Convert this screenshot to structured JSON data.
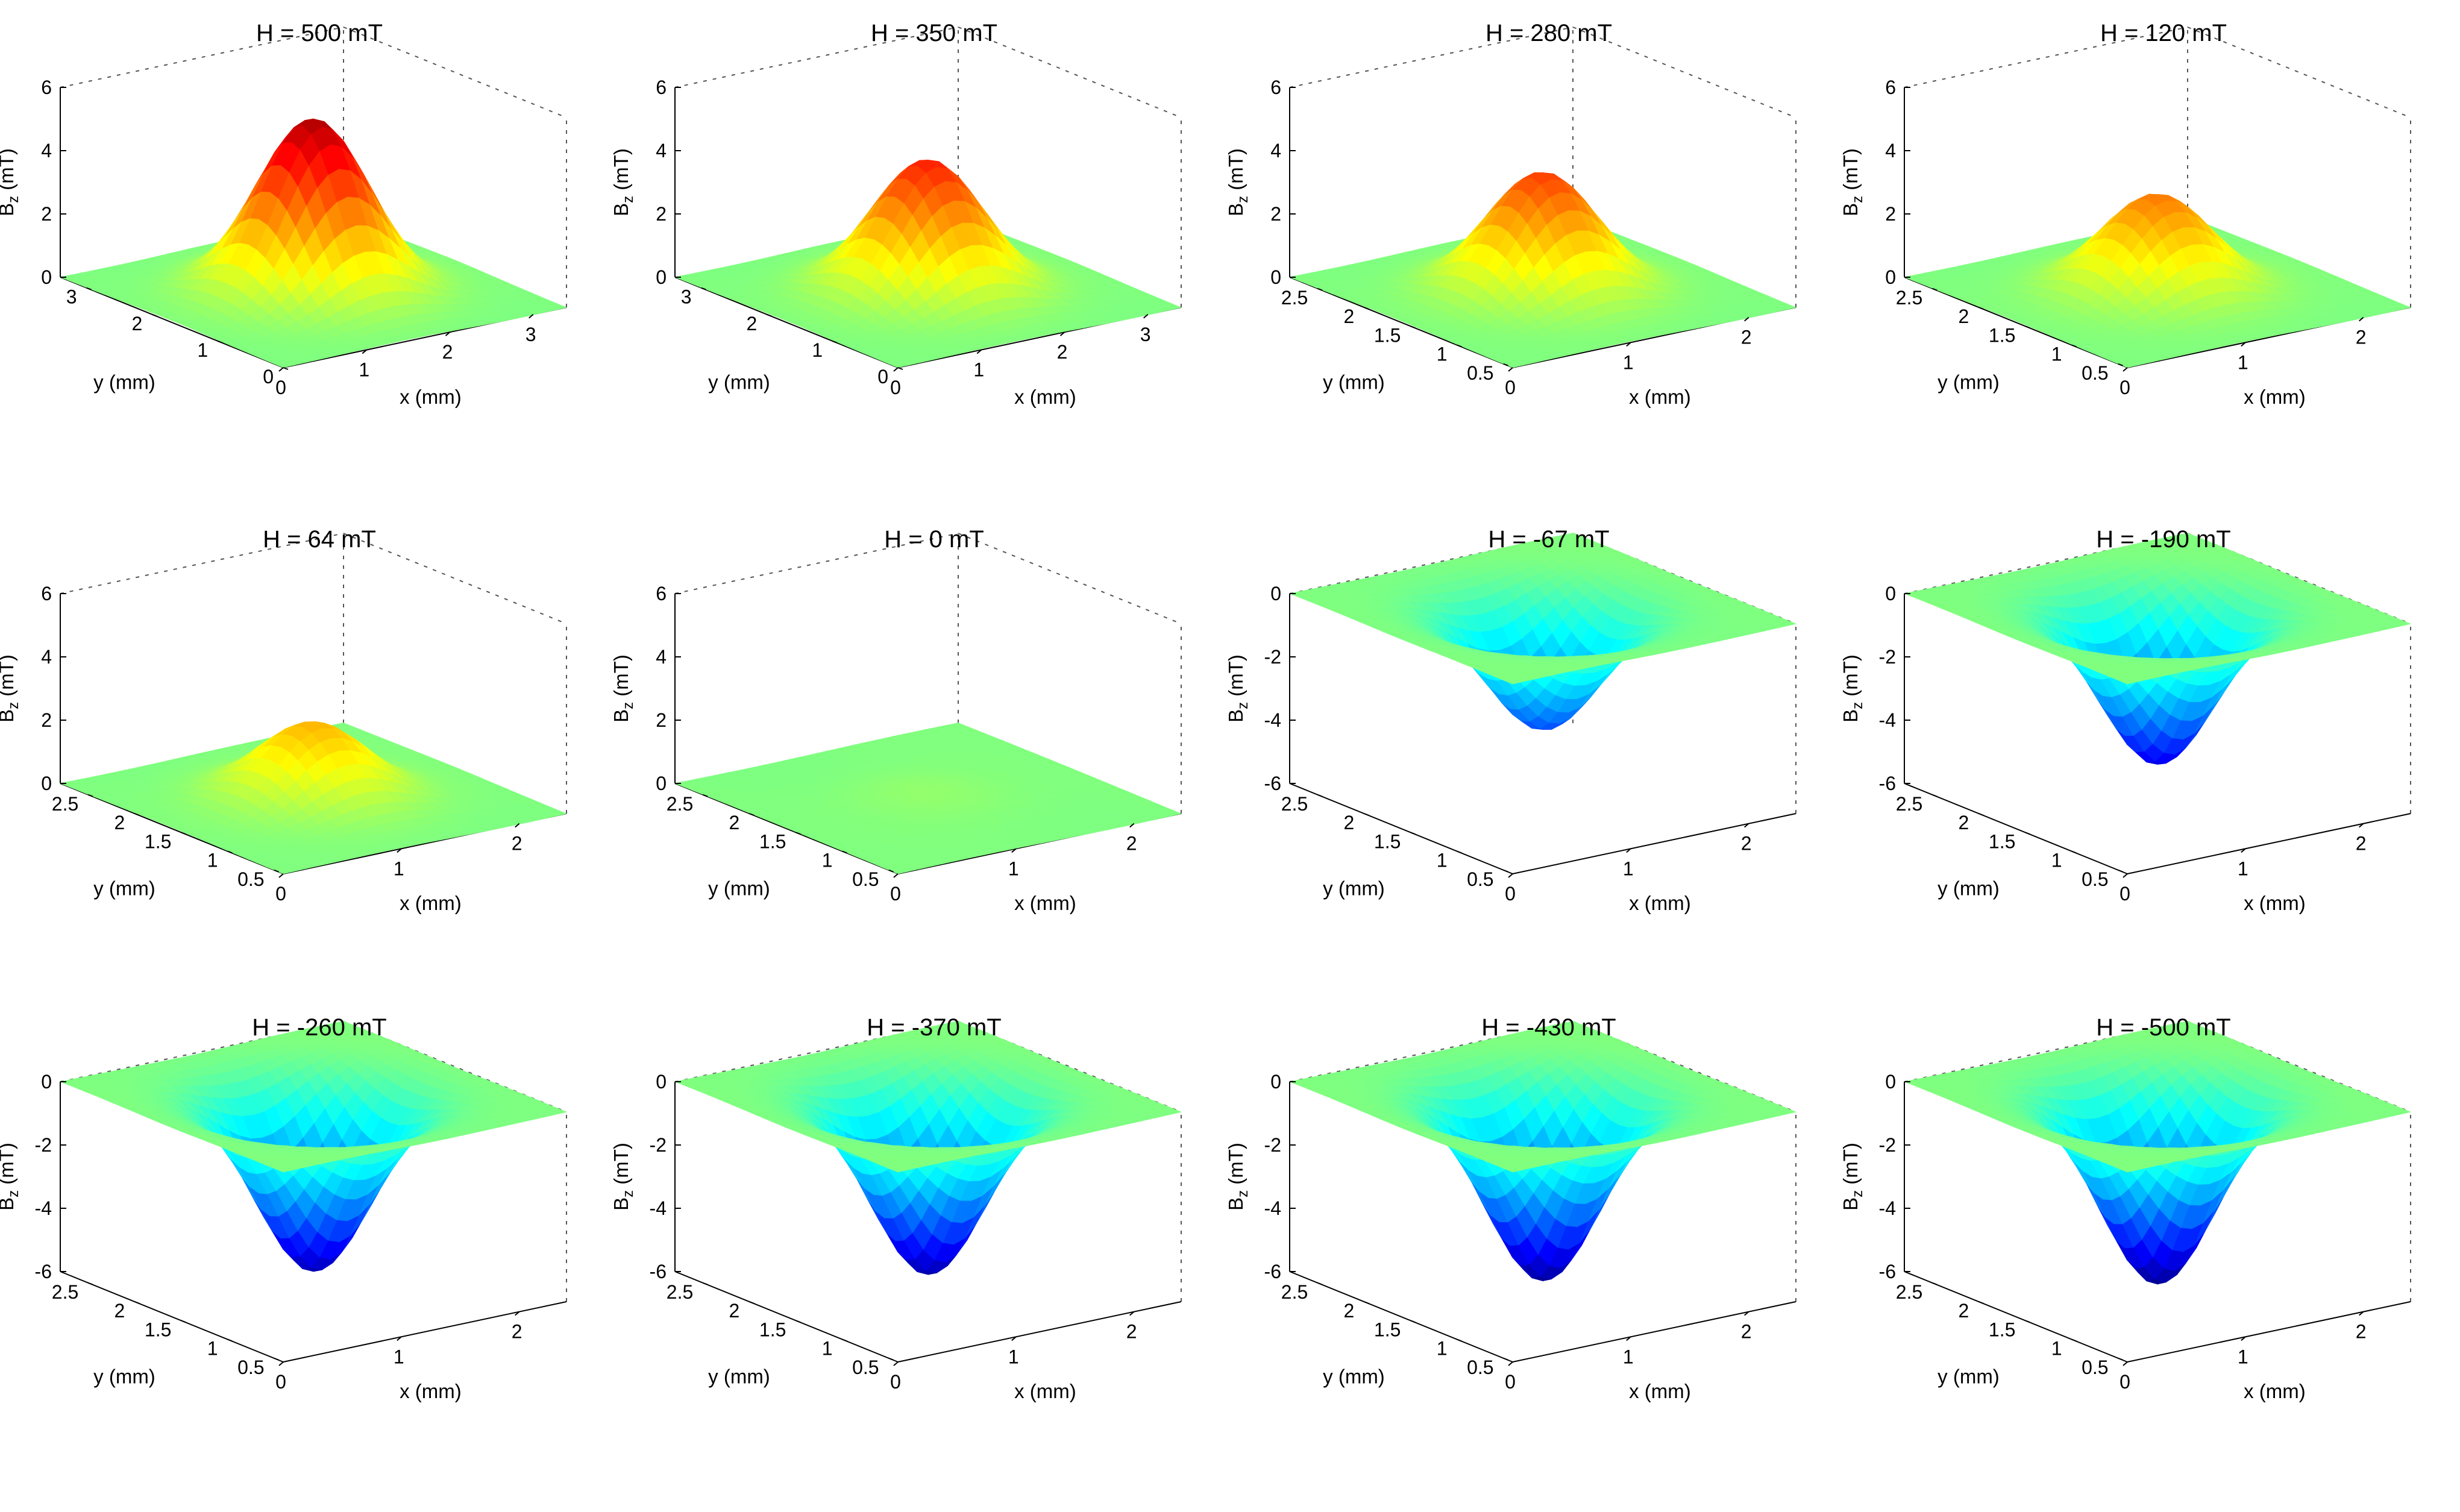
{
  "figure": {
    "axis_labels": {
      "z_main": "B",
      "z_sub": "z",
      "z_unit": " (mT)",
      "x": "x (mm)",
      "y": "y (mm)"
    }
  },
  "chart_data": [
    {
      "type": "surface",
      "title": "H = 500 mT",
      "peak_mT": 5.5,
      "z_ticks": [
        "0",
        "2",
        "4",
        "6"
      ],
      "zlim": [
        0,
        6
      ],
      "x_ticks": [
        "0",
        "1",
        "2",
        "3"
      ],
      "y_ticks": [
        "0",
        "1",
        "2",
        "3"
      ],
      "xlim": [
        0,
        3.4
      ],
      "ylim": [
        0,
        3.4
      ]
    },
    {
      "type": "surface",
      "title": "H = 350 mT",
      "peak_mT": 4.2,
      "z_ticks": [
        "0",
        "2",
        "4",
        "6"
      ],
      "zlim": [
        0,
        6
      ],
      "x_ticks": [
        "0",
        "1",
        "2",
        "3"
      ],
      "y_ticks": [
        "0",
        "1",
        "2",
        "3"
      ],
      "xlim": [
        0,
        3.4
      ],
      "ylim": [
        0,
        3.4
      ]
    },
    {
      "type": "surface",
      "title": "H = 280 mT",
      "peak_mT": 3.8,
      "z_ticks": [
        "0",
        "2",
        "4",
        "6"
      ],
      "zlim": [
        0,
        6
      ],
      "x_ticks": [
        "0",
        "1",
        "2"
      ],
      "y_ticks": [
        "0.5",
        "1",
        "1.5",
        "2",
        "2.5"
      ],
      "xlim": [
        0,
        2.4
      ],
      "ylim": [
        0.4,
        2.8
      ]
    },
    {
      "type": "surface",
      "title": "H = 120 mT",
      "peak_mT": 3.1,
      "z_ticks": [
        "0",
        "2",
        "4",
        "6"
      ],
      "zlim": [
        0,
        6
      ],
      "x_ticks": [
        "0",
        "1",
        "2"
      ],
      "y_ticks": [
        "0.5",
        "1",
        "1.5",
        "2",
        "2.5"
      ],
      "xlim": [
        0,
        2.4
      ],
      "ylim": [
        0.4,
        2.8
      ]
    },
    {
      "type": "surface",
      "title": "H = 64 mT",
      "peak_mT": 2.4,
      "z_ticks": [
        "0",
        "2",
        "4",
        "6"
      ],
      "zlim": [
        0,
        6
      ],
      "x_ticks": [
        "0",
        "1",
        "2"
      ],
      "y_ticks": [
        "0.5",
        "1",
        "1.5",
        "2",
        "2.5"
      ],
      "xlim": [
        0,
        2.4
      ],
      "ylim": [
        0.4,
        2.8
      ]
    },
    {
      "type": "surface",
      "title": "H = 0 mT",
      "peak_mT": 0.25,
      "z_ticks": [
        "0",
        "2",
        "4",
        "6"
      ],
      "zlim": [
        0,
        6
      ],
      "x_ticks": [
        "0",
        "1",
        "2"
      ],
      "y_ticks": [
        "0.5",
        "1",
        "1.5",
        "2",
        "2.5"
      ],
      "xlim": [
        0,
        2.4
      ],
      "ylim": [
        0.4,
        2.8
      ]
    },
    {
      "type": "surface",
      "title": "H = -67 mT",
      "peak_mT": -3.8,
      "z_ticks": [
        "0",
        "-2",
        "-4",
        "-6"
      ],
      "zlim": [
        -6,
        0
      ],
      "x_ticks": [
        "0",
        "1",
        "2"
      ],
      "y_ticks": [
        "0.5",
        "1",
        "1.5",
        "2",
        "2.5"
      ],
      "xlim": [
        0,
        2.4
      ],
      "ylim": [
        0.4,
        2.8
      ]
    },
    {
      "type": "surface",
      "title": "H = -190 mT",
      "peak_mT": -4.9,
      "z_ticks": [
        "0",
        "-2",
        "-4",
        "-6"
      ],
      "zlim": [
        -6,
        0
      ],
      "x_ticks": [
        "0",
        "1",
        "2"
      ],
      "y_ticks": [
        "0.5",
        "1",
        "1.5",
        "2",
        "2.5"
      ],
      "xlim": [
        0,
        2.4
      ],
      "ylim": [
        0.4,
        2.8
      ]
    },
    {
      "type": "surface",
      "title": "H = -260 mT",
      "peak_mT": -5.5,
      "z_ticks": [
        "0",
        "-2",
        "-4",
        "-6"
      ],
      "zlim": [
        -6,
        0
      ],
      "x_ticks": [
        "0",
        "1",
        "2"
      ],
      "y_ticks": [
        "0.5",
        "1",
        "1.5",
        "2",
        "2.5"
      ],
      "xlim": [
        0,
        2.4
      ],
      "ylim": [
        0.4,
        2.8
      ]
    },
    {
      "type": "surface",
      "title": "H = -370 mT",
      "peak_mT": -5.6,
      "z_ticks": [
        "0",
        "-2",
        "-4",
        "-6"
      ],
      "zlim": [
        -6,
        0
      ],
      "x_ticks": [
        "0",
        "1",
        "2"
      ],
      "y_ticks": [
        "0.5",
        "1",
        "1.5",
        "2",
        "2.5"
      ],
      "xlim": [
        0,
        2.4
      ],
      "ylim": [
        0.4,
        2.8
      ]
    },
    {
      "type": "surface",
      "title": "H = -430 mT",
      "peak_mT": -5.8,
      "z_ticks": [
        "0",
        "-2",
        "-4",
        "-6"
      ],
      "zlim": [
        -6,
        0
      ],
      "x_ticks": [
        "0",
        "1",
        "2"
      ],
      "y_ticks": [
        "0.5",
        "1",
        "1.5",
        "2",
        "2.5"
      ],
      "xlim": [
        0,
        2.4
      ],
      "ylim": [
        0.4,
        2.8
      ]
    },
    {
      "type": "surface",
      "title": "H = -500 mT",
      "peak_mT": -5.9,
      "z_ticks": [
        "0",
        "-2",
        "-4",
        "-6"
      ],
      "zlim": [
        -6,
        0
      ],
      "x_ticks": [
        "0",
        "1",
        "2"
      ],
      "y_ticks": [
        "0.5",
        "1",
        "1.5",
        "2",
        "2.5"
      ],
      "xlim": [
        0,
        2.4
      ],
      "ylim": [
        0.4,
        2.8
      ]
    }
  ]
}
